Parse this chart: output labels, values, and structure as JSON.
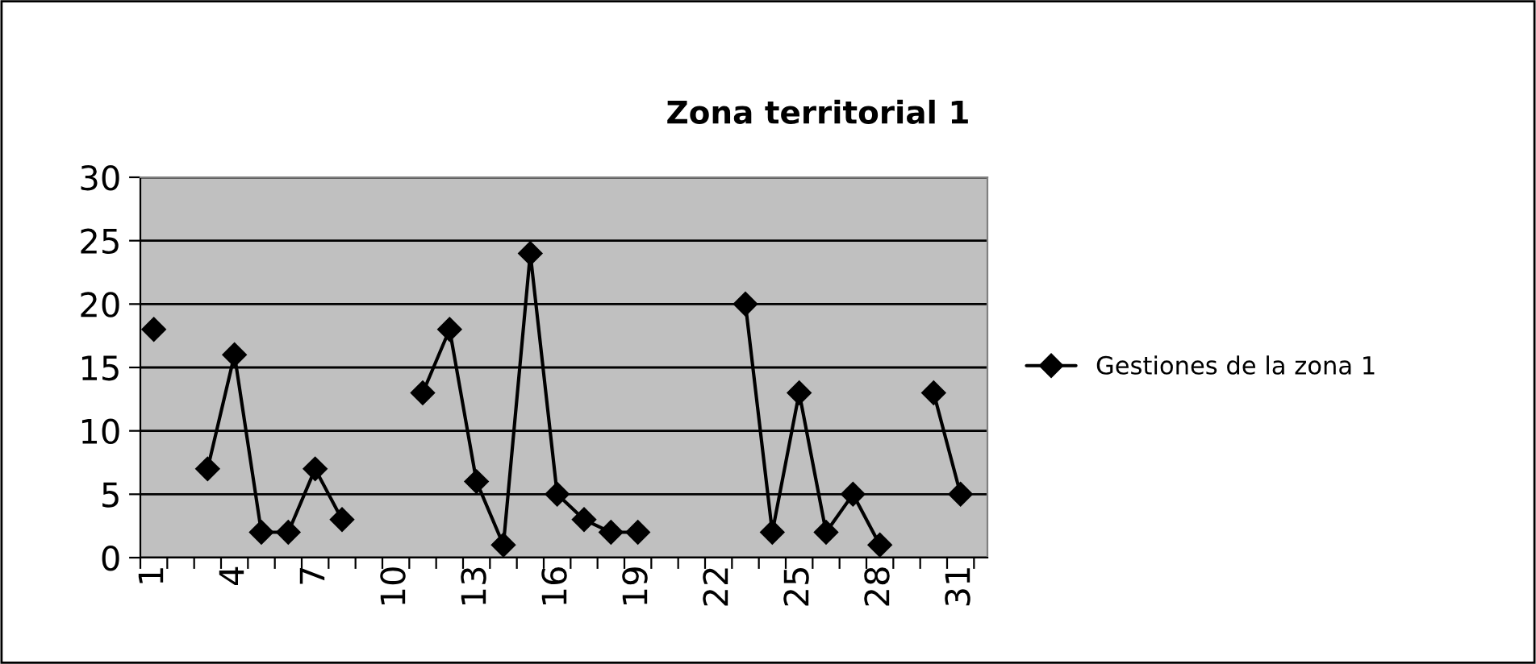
{
  "chart_data": {
    "type": "line",
    "title": "Zona territorial 1",
    "categories": [
      "1",
      null,
      null,
      "4",
      null,
      null,
      "7",
      null,
      null,
      "10",
      null,
      null,
      "13",
      null,
      null,
      "16",
      null,
      null,
      "19",
      null,
      null,
      "22",
      null,
      null,
      "25",
      null,
      null,
      "28",
      null,
      null,
      "31"
    ],
    "series": [
      {
        "name": "Gestiones de la zona 1",
        "color": "#000000",
        "values": [
          18,
          null,
          7,
          16,
          2,
          2,
          7,
          3,
          null,
          null,
          13,
          18,
          6,
          1,
          24,
          5,
          3,
          2,
          2,
          null,
          null,
          null,
          20,
          2,
          13,
          2,
          5,
          1,
          null,
          13,
          5
        ]
      }
    ],
    "ylim": [
      0,
      30
    ],
    "yticks": [
      0,
      5,
      10,
      15,
      20,
      25,
      30
    ],
    "grid": "y",
    "legend": "right",
    "marker": "diamond",
    "line_style": "solid"
  }
}
